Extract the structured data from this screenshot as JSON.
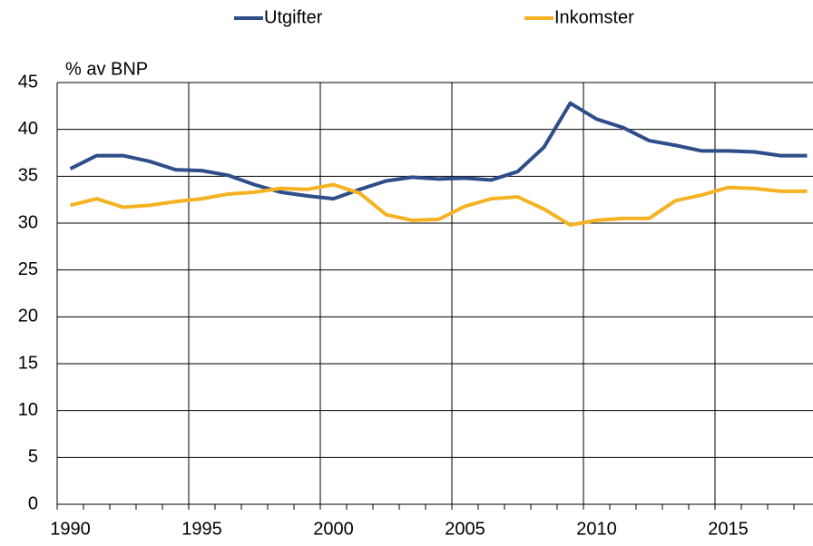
{
  "chart_data": {
    "type": "line",
    "y_axis_label": "% av BNP",
    "categories": [
      "1990",
      null,
      null,
      null,
      null,
      "1995",
      null,
      null,
      null,
      null,
      "2000",
      null,
      null,
      null,
      null,
      "2005",
      null,
      null,
      null,
      null,
      "2010",
      null,
      null,
      null,
      null,
      "2015",
      null,
      null,
      null
    ],
    "series": [
      {
        "name": "Utgifter",
        "color": "#2e4e8a",
        "values": [
          35.8,
          37.2,
          37.2,
          36.6,
          35.7,
          35.6,
          35.1,
          34.1,
          33.3,
          32.9,
          32.6,
          33.6,
          34.5,
          34.9,
          34.7,
          34.8,
          34.6,
          35.5,
          38.1,
          42.8,
          41.1,
          40.2,
          38.8,
          38.3,
          37.7,
          37.7,
          37.6,
          37.2,
          37.2
        ]
      },
      {
        "name": "Inkomster",
        "color": "#f5b223",
        "values": [
          31.9,
          32.6,
          31.7,
          31.9,
          32.3,
          32.6,
          33.1,
          33.3,
          33.7,
          33.6,
          34.1,
          33.2,
          30.9,
          30.3,
          30.4,
          31.8,
          32.6,
          32.8,
          31.5,
          29.8,
          30.3,
          30.5,
          30.5,
          32.4,
          33.0,
          33.8,
          33.7,
          33.4,
          33.4
        ]
      }
    ],
    "ylim": [
      0,
      45
    ],
    "yticks": [
      0,
      5,
      10,
      15,
      20,
      25,
      30,
      35,
      40,
      45
    ],
    "grid": true,
    "legend": "top"
  }
}
